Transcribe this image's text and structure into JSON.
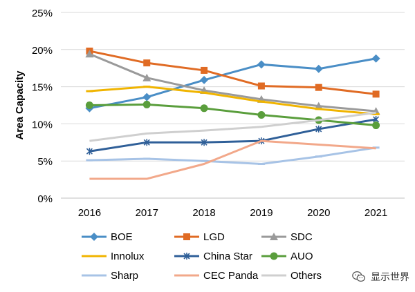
{
  "chart_data": {
    "type": "line",
    "title": "",
    "xlabel": "",
    "ylabel": "Area Capacity",
    "x": [
      "2016",
      "2017",
      "2018",
      "2019",
      "2020",
      "2021"
    ],
    "ylim": [
      0,
      25
    ],
    "yticks": [
      0,
      5,
      10,
      15,
      20,
      25
    ],
    "ytick_labels": [
      "0%",
      "5%",
      "10%",
      "15%",
      "20%",
      "25%"
    ],
    "grid": true,
    "legend": "bottom",
    "series": [
      {
        "name": "BOE",
        "color": "#4a8ec6",
        "marker": "diamond",
        "values": [
          12.1,
          13.6,
          15.9,
          18.0,
          17.4,
          18.8
        ]
      },
      {
        "name": "LGD",
        "color": "#e06b24",
        "marker": "square",
        "values": [
          19.8,
          18.2,
          17.2,
          15.1,
          14.9,
          14.0
        ]
      },
      {
        "name": "SDC",
        "color": "#9a9a9a",
        "marker": "triangle",
        "values": [
          19.4,
          16.2,
          14.5,
          13.3,
          12.4,
          11.7
        ]
      },
      {
        "name": "Innolux",
        "color": "#f0b400",
        "marker": "dash",
        "values": [
          14.4,
          15.0,
          14.2,
          13.0,
          12.0,
          11.3
        ]
      },
      {
        "name": "China Star",
        "color": "#2f5f98",
        "marker": "star",
        "values": [
          6.3,
          7.5,
          7.5,
          7.7,
          9.3,
          10.6
        ]
      },
      {
        "name": "AUO",
        "color": "#5a9e3c",
        "marker": "circle",
        "values": [
          12.5,
          12.6,
          12.1,
          11.2,
          10.5,
          9.8
        ]
      },
      {
        "name": "Sharp",
        "color": "#a7c3e6",
        "marker": "dash",
        "values": [
          5.1,
          5.3,
          5.0,
          4.6,
          5.6,
          6.8
        ]
      },
      {
        "name": "CEC Panda",
        "color": "#f2a88a",
        "marker": "none",
        "values": [
          2.6,
          2.6,
          4.6,
          7.7,
          7.2,
          6.7
        ]
      },
      {
        "name": "Others",
        "color": "#cfcfcf",
        "marker": "none",
        "values": [
          7.7,
          8.7,
          9.1,
          9.6,
          10.5,
          11.5
        ]
      }
    ]
  },
  "watermark": {
    "text": "显示世界",
    "icon": "wechat-icon"
  }
}
